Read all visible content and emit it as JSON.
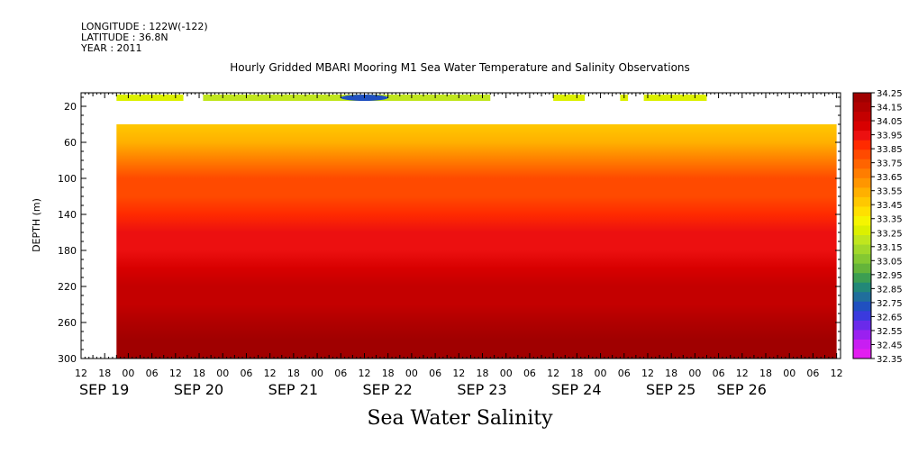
{
  "header": {
    "longitude": "LONGITUDE : 122W(-122)",
    "latitude": "LATITUDE : 36.8N",
    "year": "YEAR : 2011"
  },
  "footer": {
    "title": "Sea Water Salinity"
  },
  "colors": {
    "ramp": [
      "#a00000",
      "#b00000",
      "#c40000",
      "#d80000",
      "#ec1010",
      "#ff2a00",
      "#ff4a00",
      "#ff6400",
      "#ff7d00",
      "#ff9600",
      "#ffb000",
      "#ffc800",
      "#ffe000",
      "#f5f500",
      "#dcf000",
      "#c0e61e",
      "#a2d82a",
      "#84c832",
      "#64b43a",
      "#3c9e52",
      "#228878",
      "#206e9c",
      "#2050c0",
      "#3a3ade",
      "#6a2aea",
      "#9a20f0",
      "#c81ef2",
      "#e21ef0"
    ]
  },
  "chart_data": {
    "type": "heatmap",
    "title": "Hourly Gridded MBARI Mooring M1 Sea Water Temperature and Salinity Observations",
    "ylabel": "DEPTH (m)",
    "ylim": [
      300,
      5
    ],
    "yticks": [
      20,
      60,
      100,
      140,
      180,
      220,
      260,
      300
    ],
    "xlim_hours": [
      -12,
      181
    ],
    "x_hour_ticks": [
      {
        "h": -12,
        "label": "12"
      },
      {
        "h": -6,
        "label": "18"
      },
      {
        "h": 0,
        "label": "00"
      },
      {
        "h": 6,
        "label": "06"
      },
      {
        "h": 12,
        "label": "12"
      },
      {
        "h": 18,
        "label": "18"
      },
      {
        "h": 24,
        "label": "00"
      },
      {
        "h": 30,
        "label": "06"
      },
      {
        "h": 36,
        "label": "12"
      },
      {
        "h": 42,
        "label": "18"
      },
      {
        "h": 48,
        "label": "00"
      },
      {
        "h": 54,
        "label": "06"
      },
      {
        "h": 60,
        "label": "12"
      },
      {
        "h": 66,
        "label": "18"
      },
      {
        "h": 72,
        "label": "00"
      },
      {
        "h": 78,
        "label": "06"
      },
      {
        "h": 84,
        "label": "12"
      },
      {
        "h": 90,
        "label": "18"
      },
      {
        "h": 96,
        "label": "00"
      },
      {
        "h": 102,
        "label": "06"
      },
      {
        "h": 108,
        "label": "12"
      },
      {
        "h": 114,
        "label": "18"
      },
      {
        "h": 120,
        "label": "00"
      },
      {
        "h": 126,
        "label": "06"
      },
      {
        "h": 132,
        "label": "12"
      },
      {
        "h": 138,
        "label": "18"
      },
      {
        "h": 144,
        "label": "00"
      },
      {
        "h": 150,
        "label": "06"
      },
      {
        "h": 156,
        "label": "12"
      },
      {
        "h": 162,
        "label": "18"
      },
      {
        "h": 168,
        "label": "00"
      },
      {
        "h": 174,
        "label": "06"
      },
      {
        "h": 180,
        "label": "12"
      }
    ],
    "date_labels": [
      {
        "h": -12,
        "label": "SEP 19"
      },
      {
        "h": 12,
        "label": "SEP 20"
      },
      {
        "h": 36,
        "label": "SEP 21"
      },
      {
        "h": 60,
        "label": "SEP 22"
      },
      {
        "h": 84,
        "label": "SEP 23"
      },
      {
        "h": 108,
        "label": "SEP 24"
      },
      {
        "h": 132,
        "label": "SEP 25"
      },
      {
        "h": 150,
        "label": "SEP 26"
      }
    ],
    "colorbar_levels": [
      34.25,
      34.15,
      34.05,
      33.95,
      33.85,
      33.75,
      33.65,
      33.55,
      33.45,
      33.35,
      33.25,
      33.15,
      33.05,
      32.95,
      32.85,
      32.75,
      32.65,
      32.55,
      32.45,
      32.35
    ],
    "data_start_hour": -3,
    "data_end_hour": 180,
    "surface_bins": [
      {
        "from": -3,
        "to": 14,
        "value": 33.3
      },
      {
        "from": 19,
        "to": 92,
        "value": 33.2
      },
      {
        "from": 108,
        "to": 116,
        "value": 33.3
      },
      {
        "from": 125,
        "to": 127,
        "value": 33.3
      },
      {
        "from": 131,
        "to": 147,
        "value": 33.3
      }
    ],
    "surface_min": {
      "hour": 60,
      "value": 32.7
    },
    "deep_data_top_depth": 40,
    "profile": [
      {
        "depth": 40,
        "value": 33.5
      },
      {
        "depth": 60,
        "value": 33.58
      },
      {
        "depth": 80,
        "value": 33.72
      },
      {
        "depth": 100,
        "value": 33.8
      },
      {
        "depth": 120,
        "value": 33.85
      },
      {
        "depth": 140,
        "value": 33.9
      },
      {
        "depth": 160,
        "value": 33.96
      },
      {
        "depth": 180,
        "value": 34.0
      },
      {
        "depth": 200,
        "value": 34.04
      },
      {
        "depth": 220,
        "value": 34.08
      },
      {
        "depth": 240,
        "value": 34.13
      },
      {
        "depth": 260,
        "value": 34.2
      },
      {
        "depth": 280,
        "value": 34.22
      },
      {
        "depth": 300,
        "value": 34.23
      }
    ]
  }
}
